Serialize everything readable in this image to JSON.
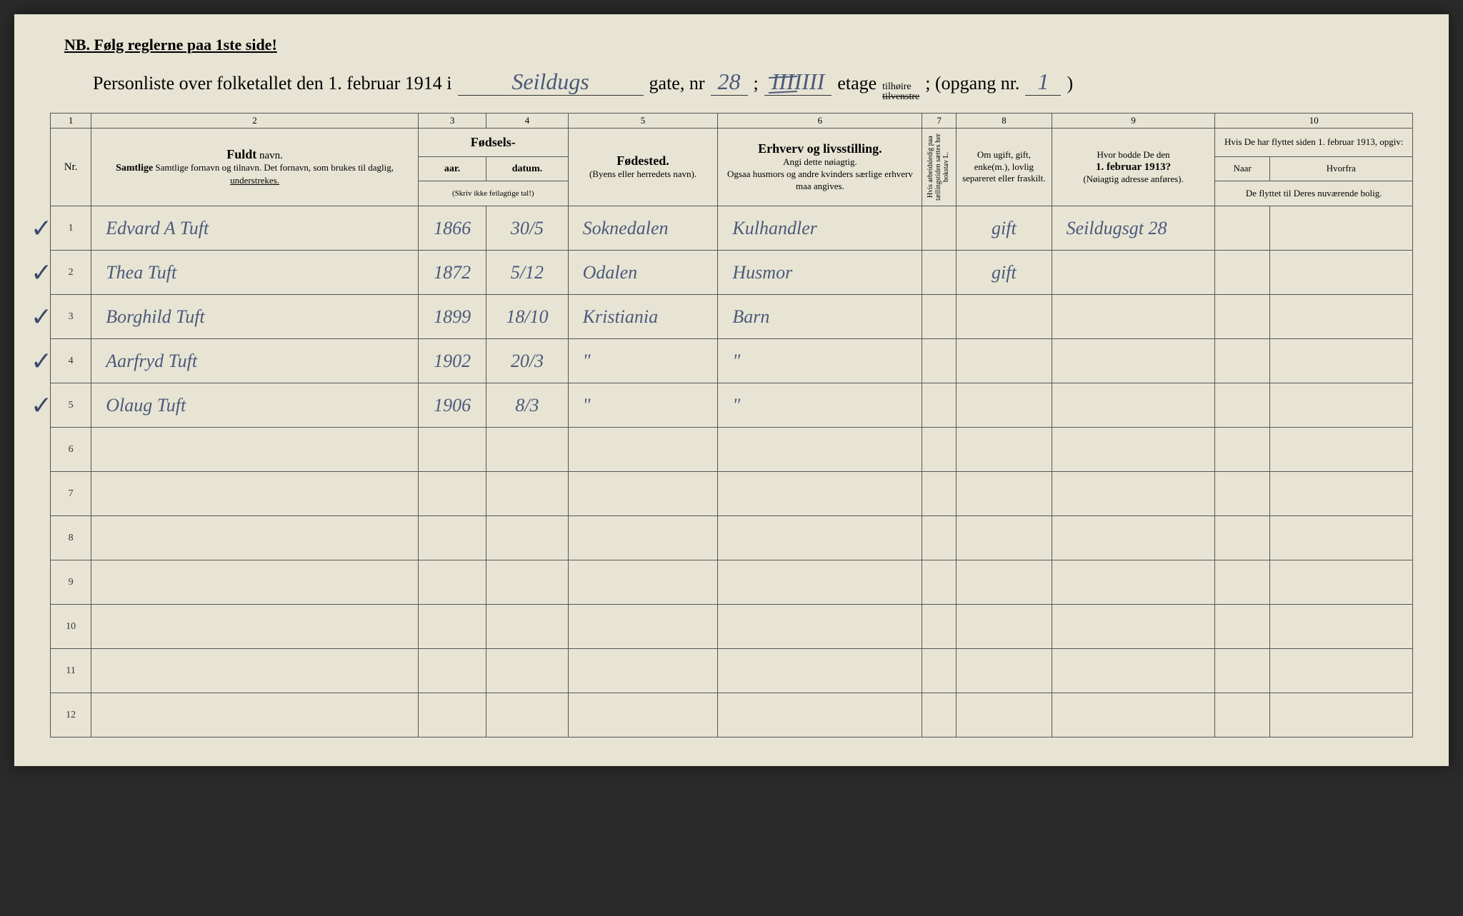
{
  "colors": {
    "paper": "#e8e4d4",
    "ink_printed": "#222222",
    "ink_handwritten": "#4a5a7a",
    "border": "#555555"
  },
  "nb_text": "NB.   Følg reglerne paa 1ste side!",
  "title": {
    "prefix": "Personliste over folketallet den 1. februar 1914 i",
    "street_hand": "Seildugs",
    "gate_label": "gate, nr",
    "gate_nr_hand": "28",
    "semicolon": ";",
    "etage_hand": "IIII",
    "etage_struck": "III",
    "etage_label": "etage",
    "side_top": "tilhøire",
    "side_bottom_struck": "tilvenstre",
    "opgang_label": "; (opgang nr.",
    "opgang_hand": "1",
    "close": ")"
  },
  "column_numbers": [
    "1",
    "2",
    "3",
    "4",
    "5",
    "6",
    "7",
    "8",
    "9",
    "10"
  ],
  "headers": {
    "nr": "Nr.",
    "fuldt_navn": "Fuldt",
    "navn_suffix": "navn.",
    "navn_sub": "Samtlige fornavn og tilnavn. Det fornavn, som brukes til daglig,",
    "navn_sub_underlined": "understrekes.",
    "fodsels": "Fødsels-",
    "aar": "aar.",
    "datum": "datum.",
    "fodsels_note": "(Skriv ikke feilagtige tal!)",
    "fodested": "Fødested.",
    "fodested_sub": "(Byens eller herredets navn).",
    "erhverv": "Erhverv og livsstilling.",
    "erhverv_sub1": "Angi dette nøiagtig.",
    "erhverv_sub2": "Ogsaa husmors og andre kvinders særlige erhverv maa angives.",
    "col7": "Hvis arbeidsledig paa tællingstiden sættes her bokstav L.",
    "col8": "Om ugift, gift, enke(m.), lovlig separeret eller fraskilt.",
    "col9_line1": "Hvor bodde De den",
    "col9_line2": "1. februar 1913?",
    "col9_sub": "(Nøiagtig adresse anføres).",
    "col10_top": "Hvis De har flyttet siden 1. februar 1913, opgiv:",
    "col10_naar": "Naar",
    "col10_hvorfra": "Hvorfra",
    "col10_bottom": "De flyttet til Deres nuværende bolig."
  },
  "rows": [
    {
      "nr": "1",
      "check": true,
      "name": "Edvard A Tuft",
      "year": "1866",
      "date": "30/5",
      "birthplace": "Soknedalen",
      "occupation": "Kulhandler",
      "marital": "gift",
      "address1913": "Seildugsgt 28"
    },
    {
      "nr": "2",
      "check": true,
      "name": "Thea Tuft",
      "year": "1872",
      "date": "5/12",
      "birthplace": "Odalen",
      "occupation": "Husmor",
      "marital": "gift",
      "address1913": ""
    },
    {
      "nr": "3",
      "check": true,
      "name": "Borghild Tuft",
      "year": "1899",
      "date": "18/10",
      "birthplace": "Kristiania",
      "occupation": "Barn",
      "marital": "",
      "address1913": ""
    },
    {
      "nr": "4",
      "check": true,
      "name": "Aarfryd Tuft",
      "year": "1902",
      "date": "20/3",
      "birthplace": "\"",
      "occupation": "\"",
      "marital": "",
      "address1913": ""
    },
    {
      "nr": "5",
      "check": true,
      "name": "Olaug Tuft",
      "year": "1906",
      "date": "8/3",
      "birthplace": "\"",
      "occupation": "\"",
      "marital": "",
      "address1913": ""
    },
    {
      "nr": "6",
      "check": false,
      "name": "",
      "year": "",
      "date": "",
      "birthplace": "",
      "occupation": "",
      "marital": "",
      "address1913": ""
    },
    {
      "nr": "7",
      "check": false,
      "name": "",
      "year": "",
      "date": "",
      "birthplace": "",
      "occupation": "",
      "marital": "",
      "address1913": ""
    },
    {
      "nr": "8",
      "check": false,
      "name": "",
      "year": "",
      "date": "",
      "birthplace": "",
      "occupation": "",
      "marital": "",
      "address1913": ""
    },
    {
      "nr": "9",
      "check": false,
      "name": "",
      "year": "",
      "date": "",
      "birthplace": "",
      "occupation": "",
      "marital": "",
      "address1913": ""
    },
    {
      "nr": "10",
      "check": false,
      "name": "",
      "year": "",
      "date": "",
      "birthplace": "",
      "occupation": "",
      "marital": "",
      "address1913": ""
    },
    {
      "nr": "11",
      "check": false,
      "name": "",
      "year": "",
      "date": "",
      "birthplace": "",
      "occupation": "",
      "marital": "",
      "address1913": ""
    },
    {
      "nr": "12",
      "check": false,
      "name": "",
      "year": "",
      "date": "",
      "birthplace": "",
      "occupation": "",
      "marital": "",
      "address1913": ""
    }
  ]
}
